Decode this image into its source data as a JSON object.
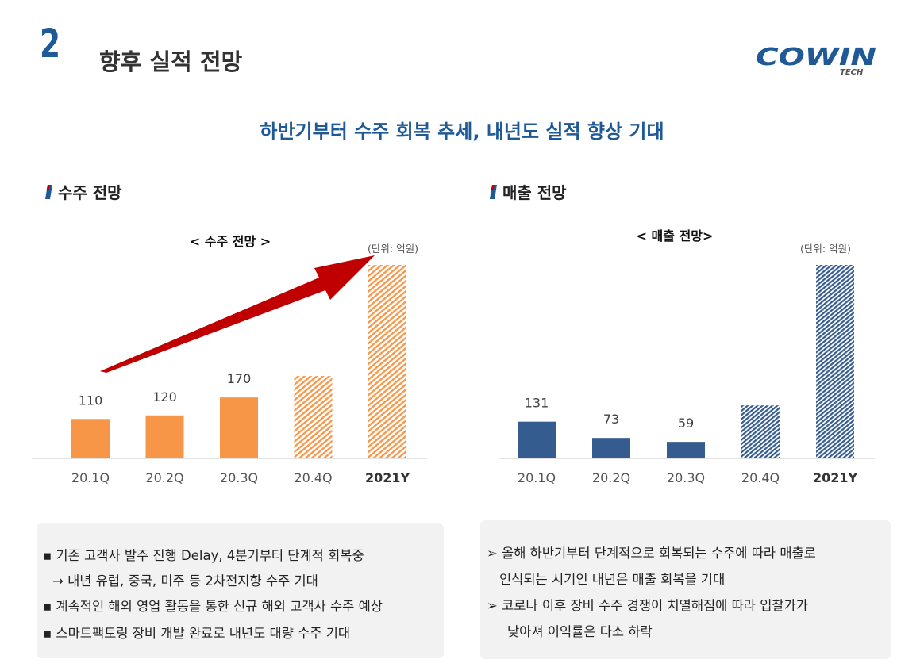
{
  "header": {
    "section_number": "2",
    "title": "향후 실적 전망",
    "logo_text": "COWIN",
    "logo_sub": "TECH"
  },
  "headline": "하반기부터 수주 회복 추세, 내년도 실적 향상 기대",
  "left_section": {
    "heading": "수주 전망",
    "chart_title": "< 수주 전망 >",
    "unit": "(단위: 억원)"
  },
  "right_section": {
    "heading": "매출 전망",
    "chart_title": "< 매출 전망>",
    "unit": "(단위: 억원)"
  },
  "chart_data": [
    {
      "type": "bar",
      "title": "< 수주 전망 >",
      "unit": "(단위: 억원)",
      "categories": [
        "20.1Q",
        "20.2Q",
        "20.3Q",
        "20.4Q",
        "2021Y"
      ],
      "values": [
        110,
        120,
        170,
        230,
        540
      ],
      "data_labels": [
        "110",
        "120",
        "170",
        "",
        ""
      ],
      "forecast": [
        false,
        false,
        false,
        true,
        true
      ],
      "bold_category": "2021Y",
      "color": "#f79646",
      "grid": false,
      "annotation": "red upward arrow toward 2021Y"
    },
    {
      "type": "bar",
      "title": "< 매출 전망>",
      "unit": "(단위: 억원)",
      "categories": [
        "20.1Q",
        "20.2Q",
        "20.3Q",
        "20.4Q",
        "2021Y"
      ],
      "values": [
        131,
        73,
        59,
        189,
        690
      ],
      "data_labels": [
        "131",
        "73",
        "59",
        "",
        ""
      ],
      "forecast": [
        false,
        false,
        false,
        true,
        true
      ],
      "bold_category": "2021Y",
      "color": "#355c8f",
      "grid": false
    }
  ],
  "left_box": {
    "lines": [
      "▪ 기존 고객사 발주 진행 Delay, 4분기부터 단계적 회복중",
      "→ 내년 유럽, 중국, 미주 등 2차전지향 수주 기대",
      "▪ 계속적인 해외 영업 활동을 통한 신규 해외 고객사 수주 예상",
      "▪ 스마트팩토링 장비 개발 완료로 내년도 대량 수주 기대"
    ]
  },
  "right_box": {
    "lines": [
      "➢ 올해 하반기부터 단계적으로 회복되는 수주에 따라 매출로",
      "인식되는 시기인 내년은 매출 회복을 기대",
      "➢ 코로나 이후 장비 수주 경쟁이 치열해짐에 따라 입찰가가",
      "낮아져 이익률은 다소 하락"
    ]
  },
  "colors": {
    "brand_blue": "#1f5a96",
    "order_orange": "#f79646",
    "sales_navy": "#355c8f",
    "arrow_red": "#c00000"
  }
}
